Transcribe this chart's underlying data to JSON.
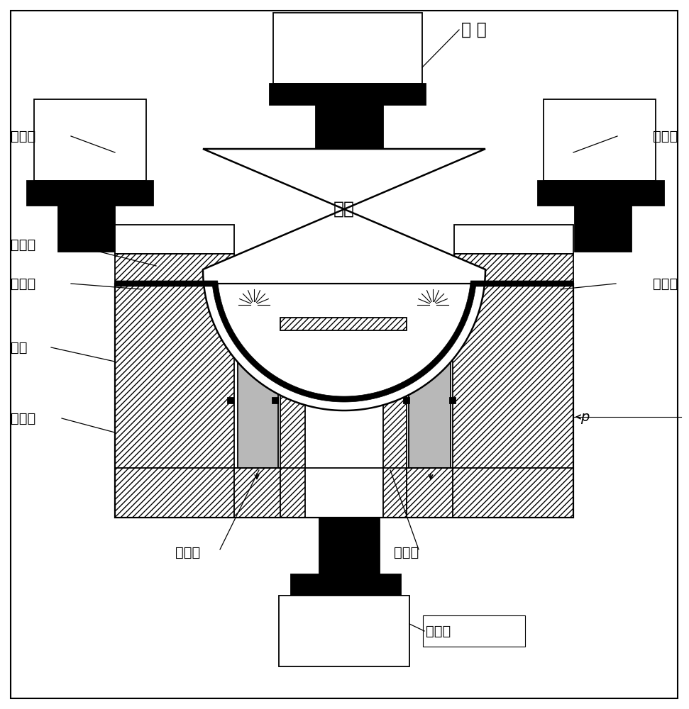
{
  "bg_color": "#ffffff",
  "black": "#000000",
  "white": "#ffffff",
  "gray": "#b8b8b8",
  "hatch": "////",
  "lw": 1.3,
  "labels": {
    "zhugangqi": "主 缸",
    "yabiangang_left": "压边缸",
    "yabiangang_right": "压边缸",
    "tumuo": "凸模",
    "yabianlquan": "压边圈",
    "mifengquan_left": "密封圈",
    "mifengquan_right": "密封圈",
    "aomuo": "凹模",
    "chuyeshi": "充液室",
    "mifengquan_bot": "密封圈",
    "beiyamuo": "背压模",
    "dingchugang": "顶出缸",
    "p_label": "p"
  },
  "fontsize": 14,
  "fontsize_large": 17
}
